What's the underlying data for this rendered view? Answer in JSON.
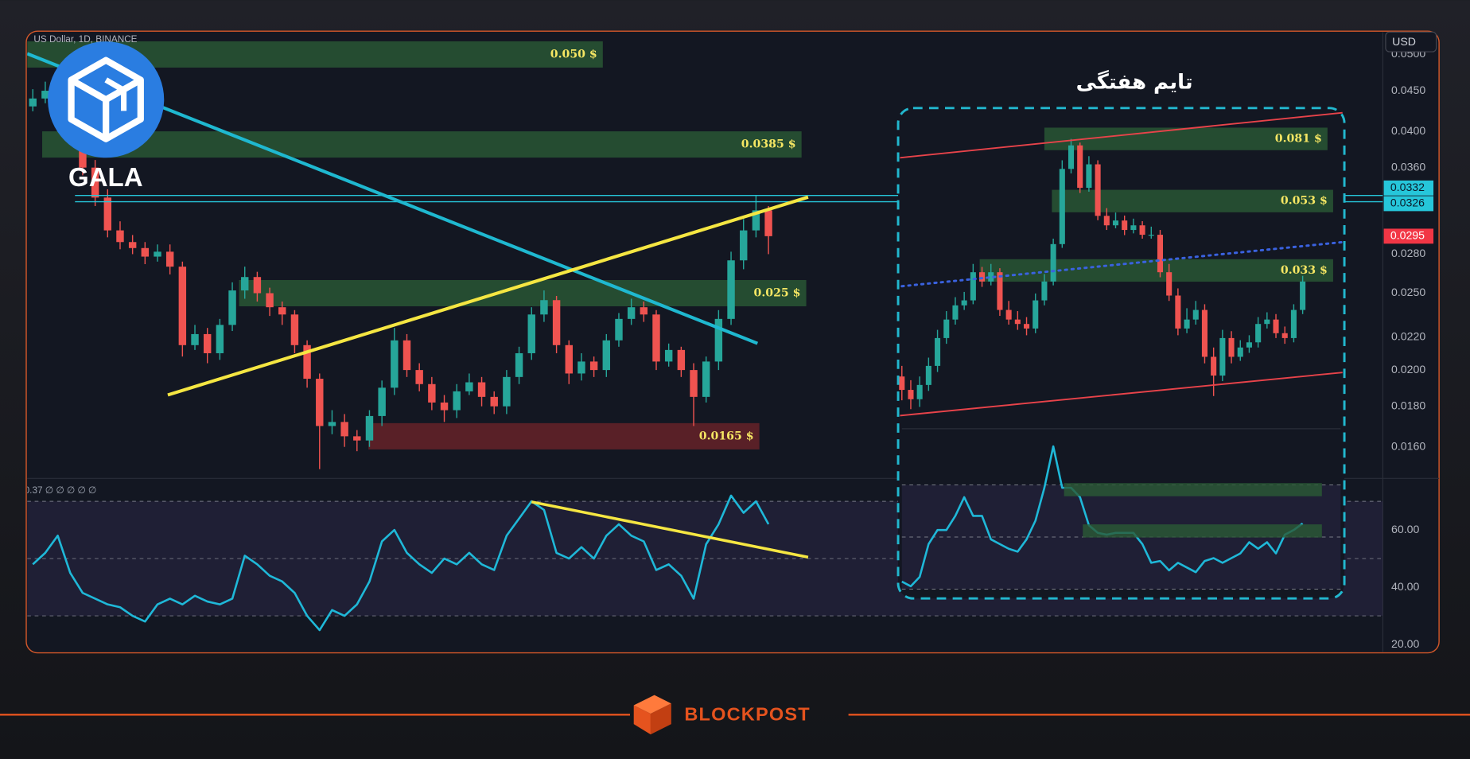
{
  "header": {
    "symbol": "US Dollar, 1D, BINANCE",
    "currency": "USD"
  },
  "logo": {
    "name": "GALA"
  },
  "footer": {
    "brand": "BLOCKPOST"
  },
  "chart_data": [
    {
      "type": "candlestick",
      "ylog": true,
      "ylim": [
        0.0146,
        0.0535
      ],
      "yticks": [
        {
          "value": 0.05,
          "label": "0.0500"
        },
        {
          "value": 0.045,
          "label": "0.0450"
        },
        {
          "value": 0.04,
          "label": "0.0400"
        },
        {
          "value": 0.036,
          "label": "0.0360"
        },
        {
          "value": 0.028,
          "label": "0.0280"
        },
        {
          "value": 0.025,
          "label": "0.0250"
        },
        {
          "value": 0.022,
          "label": "0.0220"
        },
        {
          "value": 0.02,
          "label": "0.0200"
        },
        {
          "value": 0.018,
          "label": "0.0180"
        },
        {
          "value": 0.016,
          "label": "0.0160"
        }
      ],
      "up_color": "#26a69a",
      "down_color": "#ef5350",
      "open": [
        0.043,
        0.044,
        0.045,
        0.042,
        0.04,
        0.036,
        0.033,
        0.03,
        0.029,
        0.0285,
        0.0278,
        0.0282,
        0.027,
        0.0215,
        0.0222,
        0.021,
        0.0228,
        0.0252,
        0.0262,
        0.025,
        0.024,
        0.0235,
        0.0215,
        0.0195,
        0.017,
        0.0172,
        0.0165,
        0.0163,
        0.0175,
        0.019,
        0.0218,
        0.02,
        0.0192,
        0.0182,
        0.0178,
        0.0188,
        0.0193,
        0.0185,
        0.018,
        0.0196,
        0.021,
        0.0235,
        0.0245,
        0.0215,
        0.0198,
        0.0205,
        0.02,
        0.0218,
        0.0232,
        0.024,
        0.0235,
        0.0205,
        0.0212,
        0.02,
        0.0185,
        0.0205,
        0.0232,
        0.0275,
        0.03,
        0.0318
      ],
      "high": [
        0.0452,
        0.0462,
        0.0458,
        0.0428,
        0.0408,
        0.0368,
        0.0338,
        0.0308,
        0.0296,
        0.029,
        0.0288,
        0.0288,
        0.0274,
        0.0228,
        0.0226,
        0.0232,
        0.0258,
        0.027,
        0.0266,
        0.0254,
        0.0244,
        0.0238,
        0.0218,
        0.0198,
        0.0178,
        0.0176,
        0.0168,
        0.0178,
        0.0194,
        0.0226,
        0.0222,
        0.0204,
        0.0196,
        0.0186,
        0.0192,
        0.0198,
        0.0196,
        0.0188,
        0.02,
        0.0214,
        0.024,
        0.0252,
        0.0248,
        0.0218,
        0.021,
        0.0208,
        0.0222,
        0.0236,
        0.0246,
        0.0244,
        0.0238,
        0.0216,
        0.0214,
        0.0204,
        0.0208,
        0.0238,
        0.0282,
        0.031,
        0.0332,
        0.0322
      ],
      "low": [
        0.0424,
        0.0434,
        0.0414,
        0.0392,
        0.0352,
        0.0322,
        0.0294,
        0.0284,
        0.028,
        0.0272,
        0.0274,
        0.0264,
        0.0208,
        0.0212,
        0.0204,
        0.0206,
        0.0224,
        0.0246,
        0.0244,
        0.0234,
        0.0228,
        0.021,
        0.019,
        0.015,
        0.0166,
        0.016,
        0.0158,
        0.016,
        0.017,
        0.0186,
        0.0196,
        0.0188,
        0.0178,
        0.0172,
        0.0174,
        0.0186,
        0.018,
        0.0176,
        0.0176,
        0.0192,
        0.0206,
        0.023,
        0.021,
        0.0192,
        0.0194,
        0.0196,
        0.0196,
        0.0214,
        0.0228,
        0.023,
        0.02,
        0.0202,
        0.0196,
        0.017,
        0.0182,
        0.02,
        0.0228,
        0.0268,
        0.0294,
        0.028
      ],
      "close": [
        0.044,
        0.045,
        0.042,
        0.04,
        0.036,
        0.033,
        0.03,
        0.029,
        0.0285,
        0.0278,
        0.0282,
        0.027,
        0.0215,
        0.0222,
        0.021,
        0.0228,
        0.0252,
        0.0262,
        0.025,
        0.024,
        0.0235,
        0.0215,
        0.0195,
        0.017,
        0.0172,
        0.0165,
        0.0163,
        0.0175,
        0.019,
        0.0218,
        0.02,
        0.0192,
        0.0182,
        0.0178,
        0.0188,
        0.0193,
        0.0185,
        0.018,
        0.0196,
        0.021,
        0.0235,
        0.0245,
        0.0215,
        0.0198,
        0.0205,
        0.02,
        0.0218,
        0.0232,
        0.024,
        0.0235,
        0.0205,
        0.0212,
        0.02,
        0.0185,
        0.0205,
        0.0232,
        0.0275,
        0.03,
        0.0318,
        0.0295
      ],
      "zones": [
        {
          "value": 0.05,
          "label": "0.050 $",
          "color": "#2b5a36"
        },
        {
          "value": 0.0385,
          "label": "0.0385 $",
          "color": "#2b5a36"
        },
        {
          "value": 0.025,
          "label": "0.025 $",
          "color": "#2b5a36"
        },
        {
          "value": 0.0165,
          "label": "0.0165 $",
          "color": "#6b2329"
        }
      ],
      "price_tags": [
        0.0332,
        0.0326,
        0.0295
      ],
      "price_tag_colors": [
        "#26c6da",
        "#26c6da",
        "#f23645"
      ]
    },
    {
      "type": "line",
      "legend": "0.37 ∅ ∅ ∅ ∅ ∅",
      "color": "#1fb8d8",
      "ylim": [
        17.4,
        78
      ],
      "yticks": [
        {
          "value": 20,
          "label": "20.00"
        },
        {
          "value": 40,
          "label": "40.00"
        },
        {
          "value": 60,
          "label": "60.00"
        }
      ],
      "levels": [
        30,
        50,
        70
      ],
      "values": [
        48,
        52,
        58,
        45,
        38,
        36,
        34,
        33,
        30,
        28,
        34,
        36,
        34,
        37,
        35,
        34,
        36,
        51,
        48,
        44,
        42,
        38,
        30,
        25,
        32,
        30,
        34,
        42,
        56,
        60,
        52,
        48,
        45,
        50,
        48,
        52,
        48,
        46,
        58,
        64,
        70,
        67,
        52,
        50,
        54,
        50,
        58,
        62,
        58,
        56,
        46,
        48,
        44,
        36,
        55,
        62,
        72,
        66,
        70,
        62
      ]
    },
    {
      "type": "candlestick",
      "title": "تایم هفتگی",
      "ylog": true,
      "ylim": [
        0.0112,
        0.1
      ],
      "up_color": "#26a69a",
      "down_color": "#ef5350",
      "open": [
        0.016,
        0.0146,
        0.0137,
        0.0151,
        0.0172,
        0.0208,
        0.0236,
        0.026,
        0.0269,
        0.0326,
        0.0306,
        0.0326,
        0.0252,
        0.0236,
        0.0229,
        0.0222,
        0.0269,
        0.0306,
        0.0395,
        0.066,
        0.0775,
        0.058,
        0.0681,
        0.0479,
        0.0449,
        0.0464,
        0.0435,
        0.0449,
        0.0421,
        0.0421,
        0.0326,
        0.0278,
        0.0222,
        0.0236,
        0.0252,
        0.0183,
        0.0161,
        0.0208,
        0.0183,
        0.0195,
        0.0202,
        0.0229,
        0.0236,
        0.0215,
        0.0208,
        0.0252
      ],
      "high": [
        0.0172,
        0.0156,
        0.016,
        0.0182,
        0.022,
        0.025,
        0.0275,
        0.0285,
        0.0345,
        0.0338,
        0.0345,
        0.0335,
        0.0268,
        0.025,
        0.024,
        0.0282,
        0.0322,
        0.041,
        0.07,
        0.081,
        0.079,
        0.072,
        0.07,
        0.0505,
        0.049,
        0.048,
        0.047,
        0.0462,
        0.0445,
        0.0435,
        0.0345,
        0.0292,
        0.0255,
        0.0268,
        0.0262,
        0.0195,
        0.022,
        0.0218,
        0.0205,
        0.0212,
        0.024,
        0.0248,
        0.0245,
        0.0225,
        0.0262,
        0.0318
      ],
      "low": [
        0.0136,
        0.0128,
        0.013,
        0.0145,
        0.0165,
        0.02,
        0.0228,
        0.0252,
        0.0262,
        0.0295,
        0.0298,
        0.0242,
        0.0228,
        0.022,
        0.0212,
        0.0215,
        0.026,
        0.0298,
        0.0385,
        0.064,
        0.056,
        0.0565,
        0.0465,
        0.0435,
        0.044,
        0.042,
        0.0425,
        0.041,
        0.041,
        0.0315,
        0.0268,
        0.0212,
        0.0215,
        0.0228,
        0.0175,
        0.014,
        0.0155,
        0.0175,
        0.0178,
        0.0188,
        0.0195,
        0.0222,
        0.0208,
        0.02,
        0.0202,
        0.0245
      ],
      "close": [
        0.0146,
        0.0137,
        0.0151,
        0.0172,
        0.0208,
        0.0236,
        0.026,
        0.0269,
        0.0326,
        0.0306,
        0.0326,
        0.0252,
        0.0236,
        0.0229,
        0.0222,
        0.0269,
        0.0306,
        0.0395,
        0.066,
        0.0775,
        0.058,
        0.0681,
        0.0479,
        0.0449,
        0.0464,
        0.0435,
        0.0449,
        0.0421,
        0.0421,
        0.0326,
        0.0278,
        0.0222,
        0.0236,
        0.0252,
        0.0183,
        0.0161,
        0.0208,
        0.0183,
        0.0195,
        0.0202,
        0.0229,
        0.0236,
        0.0215,
        0.0208,
        0.0252,
        0.0306
      ],
      "zones": [
        {
          "value": 0.081,
          "label": "0.081 $",
          "color": "#2b5a36"
        },
        {
          "value": 0.053,
          "label": "0.053 $",
          "color": "#2b5a36"
        },
        {
          "value": 0.033,
          "label": "0.033 $",
          "color": "#2b5a36"
        }
      ]
    },
    {
      "type": "line",
      "color": "#1fb8d8",
      "ylim": [
        27.5,
        90.5
      ],
      "levels": [
        30,
        50,
        70
      ],
      "values": [
        32.9,
        31.1,
        34.7,
        47.3,
        52.7,
        52.7,
        58.1,
        65.3,
        58.1,
        58.1,
        49.1,
        47.3,
        45.5,
        44.4,
        49.1,
        56.3,
        68.9,
        84.8,
        68.9,
        68.9,
        65.3,
        54.5,
        51.6,
        50.9,
        51.6,
        51.6,
        51.6,
        47.3,
        40.1,
        40.8,
        37.2,
        40.1,
        38.3,
        36.5,
        40.8,
        41.9,
        40.1,
        41.9,
        43.7,
        48.0,
        45.5,
        48.0,
        43.7,
        50.9,
        52.7,
        55.2
      ]
    }
  ]
}
